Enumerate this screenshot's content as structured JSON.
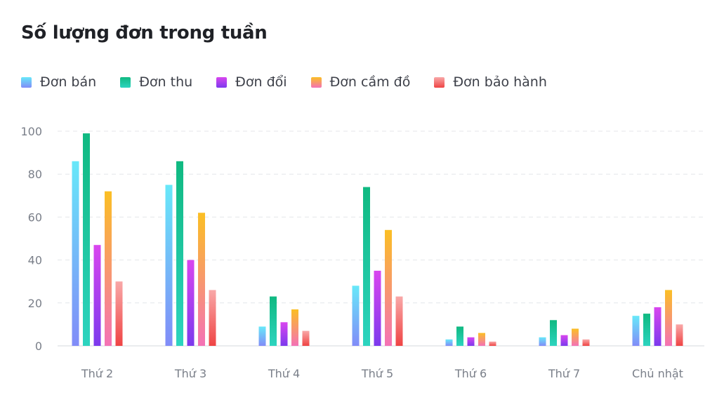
{
  "title": "Số lượng đơn trong tuần",
  "chart_data": {
    "type": "bar",
    "title": "Số lượng đơn trong tuần",
    "xlabel": "",
    "ylabel": "",
    "categories": [
      "Thứ 2",
      "Thứ 3",
      "Thứ 4",
      "Thứ 5",
      "Thứ 6",
      "Thứ 7",
      "Chủ nhật"
    ],
    "ylim": [
      0,
      100
    ],
    "yticks": [
      "0",
      "20",
      "40",
      "60",
      "80",
      "100"
    ],
    "grid": true,
    "legend_position": "top-left",
    "series": [
      {
        "name": "Đơn bán",
        "values": [
          86,
          75,
          9,
          28,
          3,
          4,
          14
        ],
        "color_top": "#67e8f9",
        "color_bottom": "#818cf8"
      },
      {
        "name": "Đơn thu",
        "values": [
          99,
          86,
          23,
          74,
          9,
          12,
          15
        ],
        "color_top": "#10b981",
        "color_bottom": "#2dd4bf"
      },
      {
        "name": "Đơn đổi",
        "values": [
          47,
          40,
          11,
          35,
          4,
          5,
          18
        ],
        "color_top": "#d946ef",
        "color_bottom": "#7c3aed"
      },
      {
        "name": "Đơn cầm đồ",
        "values": [
          72,
          62,
          17,
          54,
          6,
          8,
          26
        ],
        "color_top": "#fbbf24",
        "color_bottom": "#f472b6"
      },
      {
        "name": "Đơn bảo hành",
        "values": [
          30,
          26,
          7,
          23,
          2,
          3,
          10
        ],
        "color_top": "#f9a8a8",
        "color_bottom": "#ef4444"
      }
    ]
  }
}
